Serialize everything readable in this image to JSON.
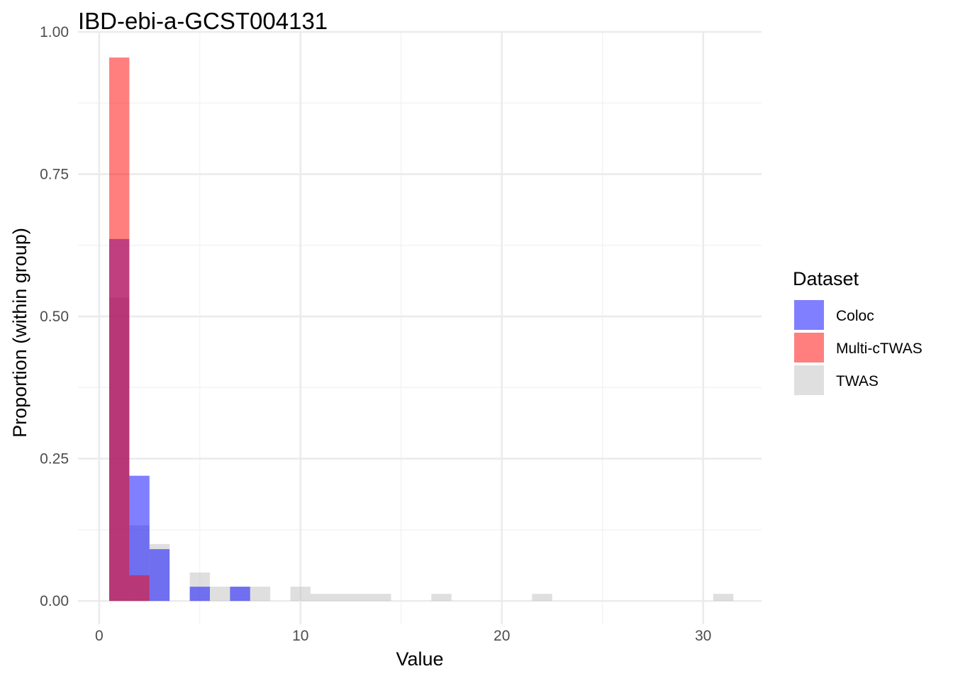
{
  "chart_data": {
    "type": "bar",
    "subtype": "overlaid-histogram",
    "title": "IBD-ebi-a-GCST004131",
    "xlabel": "Value",
    "ylabel": "Proportion (within group)",
    "xlim": [
      -1.05,
      32.9
    ],
    "ylim": [
      -0.041,
      1.0
    ],
    "x_ticks": [
      0,
      10,
      20,
      30
    ],
    "x_tick_labels": [
      "0",
      "10",
      "20",
      "30"
    ],
    "y_ticks": [
      0.0,
      0.25,
      0.5,
      0.75,
      1.0
    ],
    "y_tick_labels": [
      "0.00",
      "0.25",
      "0.50",
      "0.75",
      "1.00"
    ],
    "x_minor_ticks": [
      5,
      15,
      25
    ],
    "y_minor_ticks": [
      0.125,
      0.375,
      0.625,
      0.875
    ],
    "grid": true,
    "bin_width": 1,
    "legend": {
      "title": "Dataset",
      "position": "right"
    },
    "series": [
      {
        "name": "TWAS",
        "color": "#bfbfbf",
        "opacity": 0.5,
        "bins": [
          {
            "x": 1,
            "y": 0.533
          },
          {
            "x": 2,
            "y": 0.133
          },
          {
            "x": 3,
            "y": 0.1
          },
          {
            "x": 5,
            "y": 0.05
          },
          {
            "x": 6,
            "y": 0.025
          },
          {
            "x": 7,
            "y": 0.025
          },
          {
            "x": 8,
            "y": 0.025
          },
          {
            "x": 10,
            "y": 0.025
          },
          {
            "x": 11,
            "y": 0.0125
          },
          {
            "x": 12,
            "y": 0.0125
          },
          {
            "x": 13,
            "y": 0.0125
          },
          {
            "x": 14,
            "y": 0.0125
          },
          {
            "x": 17,
            "y": 0.0125
          },
          {
            "x": 22,
            "y": 0.0125
          },
          {
            "x": 31,
            "y": 0.0125
          }
        ]
      },
      {
        "name": "Coloc",
        "color": "#0000ff",
        "opacity": 0.5,
        "bins": [
          {
            "x": 1,
            "y": 0.636
          },
          {
            "x": 2,
            "y": 0.22
          },
          {
            "x": 3,
            "y": 0.091
          },
          {
            "x": 5,
            "y": 0.025
          },
          {
            "x": 7,
            "y": 0.025
          }
        ]
      },
      {
        "name": "Multi-cTWAS",
        "color": "#ff0000",
        "opacity": 0.5,
        "bins": [
          {
            "x": 1,
            "y": 0.955
          },
          {
            "x": 2,
            "y": 0.045
          }
        ]
      }
    ],
    "legend_order": [
      "Coloc",
      "Multi-cTWAS",
      "TWAS"
    ]
  }
}
